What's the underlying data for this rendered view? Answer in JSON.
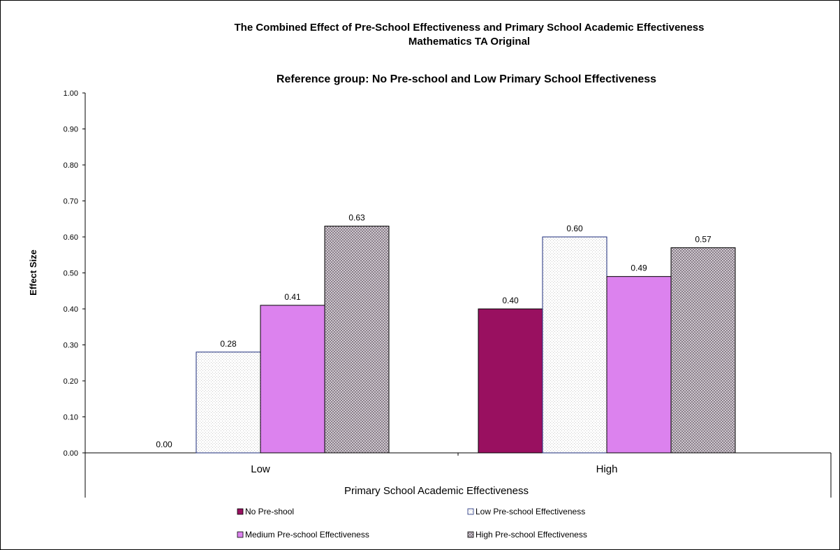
{
  "chart_data": {
    "type": "bar",
    "title": "The Combined Effect of Pre-School Effectiveness and Primary School Academic Effectiveness",
    "subtitle": "Mathematics TA Original",
    "reference_note": "Reference group: No Pre-school and Low Primary School Effectiveness",
    "xlabel": "Primary School Academic Effectiveness",
    "ylabel": "Effect Size",
    "ylim": [
      0,
      1.0
    ],
    "yticks": [
      "0.00",
      "0.10",
      "0.20",
      "0.30",
      "0.40",
      "0.50",
      "0.60",
      "0.70",
      "0.80",
      "0.90",
      "1.00"
    ],
    "categories": [
      "Low",
      "High"
    ],
    "series": [
      {
        "name": "No Pre-shool",
        "values": [
          0.0,
          0.4
        ],
        "labels": [
          "0.00",
          "0.40"
        ],
        "color": "#991060",
        "pattern": "solid"
      },
      {
        "name": "Low Pre-school Effectiveness",
        "values": [
          0.28,
          0.6
        ],
        "labels": [
          "0.28",
          "0.60"
        ],
        "color": "#ffffff",
        "pattern": "dots"
      },
      {
        "name": "Medium  Pre-school Effectiveness",
        "values": [
          0.41,
          0.49
        ],
        "labels": [
          "0.41",
          "0.49"
        ],
        "color": "#dc82ee",
        "pattern": "solid"
      },
      {
        "name": "High Pre-school Effectiveness",
        "values": [
          0.63,
          0.57
        ],
        "labels": [
          "0.63",
          "0.57"
        ],
        "color": "#b0a8b0",
        "pattern": "checker"
      }
    ],
    "legend_position": "bottom",
    "grid": false
  }
}
